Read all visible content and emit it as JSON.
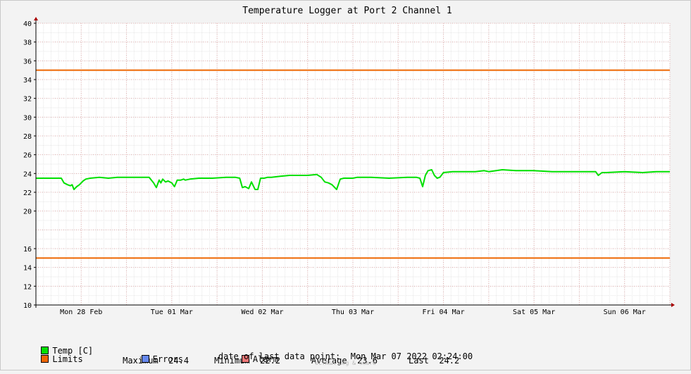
{
  "chart_data": {
    "type": "line",
    "title": "Temperature Logger at Port 2 Channel 1",
    "ylim": [
      10,
      40
    ],
    "yticks": [
      10,
      12,
      14,
      16,
      20,
      22,
      24,
      26,
      28,
      30,
      32,
      34,
      36,
      38,
      40
    ],
    "xlim_days": [
      0,
      7
    ],
    "xtick_labels": [
      "Mon 28 Feb",
      "Tue 01 Mar",
      "Wed 02 Mar",
      "Thu 03 Mar",
      "Fri 04 Mar",
      "Sat 05 Mar",
      "Sun 06 Mar"
    ],
    "grid": true,
    "limits": {
      "upper": 35,
      "lower": 15
    },
    "series": [
      {
        "name": "Temp [C]",
        "color": "#00e000",
        "x": [
          0.0,
          0.25,
          0.28,
          0.31,
          0.35,
          0.38,
          0.4,
          0.42,
          0.45,
          0.48,
          0.52,
          0.55,
          0.6,
          0.7,
          0.8,
          0.9,
          1.0,
          1.15,
          1.25,
          1.3,
          1.33,
          1.36,
          1.38,
          1.4,
          1.43,
          1.46,
          1.5,
          1.53,
          1.56,
          1.6,
          1.63,
          1.65,
          1.7,
          1.8,
          1.95,
          2.1,
          2.2,
          2.25,
          2.28,
          2.31,
          2.35,
          2.38,
          2.42,
          2.45,
          2.48,
          2.52,
          2.56,
          2.6,
          2.7,
          2.8,
          2.9,
          3.0,
          3.1,
          3.15,
          3.19,
          3.23,
          3.27,
          3.32,
          3.36,
          3.4,
          3.42,
          3.45,
          3.5,
          3.55,
          3.7,
          3.9,
          4.1,
          4.2,
          4.24,
          4.27,
          4.3,
          4.33,
          4.37,
          4.4,
          4.43,
          4.46,
          4.5,
          4.6,
          4.7,
          4.85,
          4.95,
          5.0,
          5.15,
          5.3,
          5.5,
          5.7,
          5.9,
          6.05,
          6.1,
          6.15,
          6.18,
          6.21,
          6.25,
          6.3,
          6.5,
          6.7,
          6.85,
          7.0
        ],
        "y": [
          23.5,
          23.5,
          23.5,
          23.0,
          22.8,
          22.7,
          22.8,
          22.3,
          22.6,
          22.8,
          23.2,
          23.4,
          23.5,
          23.6,
          23.5,
          23.6,
          23.6,
          23.6,
          23.6,
          23.0,
          22.5,
          23.3,
          23.0,
          23.4,
          23.1,
          23.2,
          23.0,
          22.6,
          23.3,
          23.3,
          23.4,
          23.3,
          23.4,
          23.5,
          23.5,
          23.6,
          23.6,
          23.5,
          22.5,
          22.6,
          22.4,
          23.1,
          22.3,
          22.3,
          23.5,
          23.5,
          23.6,
          23.6,
          23.7,
          23.8,
          23.8,
          23.8,
          23.9,
          23.6,
          23.1,
          23.0,
          22.8,
          22.3,
          23.4,
          23.5,
          23.5,
          23.5,
          23.5,
          23.6,
          23.6,
          23.5,
          23.6,
          23.6,
          23.5,
          22.6,
          23.8,
          24.3,
          24.4,
          23.8,
          23.5,
          23.6,
          24.1,
          24.2,
          24.2,
          24.2,
          24.3,
          24.2,
          24.4,
          24.3,
          24.3,
          24.2,
          24.2,
          24.2,
          24.2,
          24.2,
          24.2,
          23.8,
          24.1,
          24.1,
          24.2,
          24.1,
          24.2,
          24.2
        ]
      }
    ]
  },
  "legend": {
    "temp_label": "Temp [C]",
    "maximum_label": "Maximum",
    "maximum_value": "24.4",
    "minimum_label": "Minimum",
    "minimum_value": "22.2",
    "average_label": "Average",
    "average_value": "23.6",
    "last_label": "Last",
    "last_value": "24.2",
    "limits_label": "Limits",
    "errors_label": "Errors",
    "alarm_label": "Alarm",
    "colors": {
      "temp": "#00e000",
      "limits": "#ee6600",
      "errors": "#6688ee",
      "alarm": "#ee7777"
    }
  },
  "last_data_point": {
    "label": "date of last data point:",
    "value": "Mon Mar 07 2022 02:24:00"
  },
  "footer": "OCTA&A Log & Guard"
}
